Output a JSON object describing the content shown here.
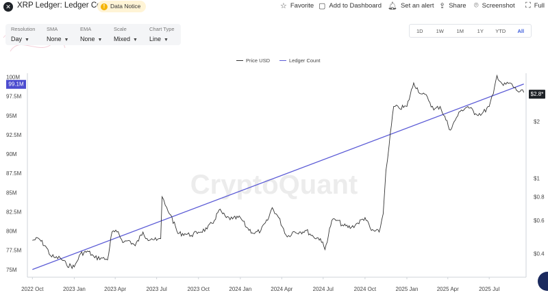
{
  "header": {
    "title": "XRP Ledger: Ledger Count",
    "notice_label": "Data Notice",
    "actions": [
      {
        "label": "Favorite",
        "icon": "star-icon"
      },
      {
        "label": "Add to Dashboard",
        "icon": "box-icon"
      },
      {
        "label": "Set an alert",
        "icon": "bell-icon"
      },
      {
        "label": "Share",
        "icon": "share-icon"
      },
      {
        "label": "Screenshot",
        "icon": "camera-icon"
      },
      {
        "label": "Full",
        "icon": "fullscreen-icon"
      }
    ]
  },
  "controls": {
    "resolution": {
      "label": "Resolution",
      "value": "Day"
    },
    "sma": {
      "label": "SMA",
      "value": "None"
    },
    "ema": {
      "label": "EMA",
      "value": "None"
    },
    "scale": {
      "label": "Scale",
      "value": "Mixed"
    },
    "chart_type": {
      "label": "Chart Type",
      "value": "Line"
    }
  },
  "ranges": [
    "1D",
    "1W",
    "1M",
    "1Y",
    "YTD",
    "All"
  ],
  "active_range": "All",
  "watermark": "CryptoQuant",
  "colors": {
    "price": "#333333",
    "ledger": "#5b5bd6",
    "accent": "#3b5bdb"
  },
  "chart_data": {
    "type": "line",
    "x_ticks": [
      "2022 Oct",
      "2023 Jan",
      "2023 Apr",
      "2023 Jul",
      "2023 Oct",
      "2024 Jan",
      "2024 Apr",
      "2024 Jul",
      "2024 Oct",
      "2025 Jan",
      "2025 Apr",
      "2025 Jul"
    ],
    "left_axis": {
      "ticks": [
        "75M",
        "77.5M",
        "80M",
        "82.5M",
        "85M",
        "87.5M",
        "90M",
        "92.5M",
        "95M",
        "97.5M",
        "100M"
      ],
      "range": [
        74,
        100.5
      ],
      "current_label": "99.1M"
    },
    "right_axis": {
      "scale": "log",
      "ticks": [
        "$0.4",
        "$0.6",
        "$0.8",
        "$1",
        "$2"
      ],
      "range": [
        0.3,
        3.6
      ],
      "current_label": "$2.8"
    },
    "series": [
      {
        "name": "Price USD",
        "axis": "right",
        "x": [
          "2022-10-01",
          "2022-10-15",
          "2022-11-01",
          "2022-11-10",
          "2022-11-20",
          "2022-12-01",
          "2022-12-15",
          "2023-01-01",
          "2023-01-15",
          "2023-02-01",
          "2023-02-15",
          "2023-03-01",
          "2023-03-15",
          "2023-03-25",
          "2023-04-05",
          "2023-04-20",
          "2023-05-01",
          "2023-05-15",
          "2023-06-01",
          "2023-06-10",
          "2023-06-20",
          "2023-07-01",
          "2023-07-10",
          "2023-07-13",
          "2023-07-20",
          "2023-08-01",
          "2023-08-17",
          "2023-09-01",
          "2023-09-15",
          "2023-10-01",
          "2023-10-20",
          "2023-11-05",
          "2023-11-15",
          "2023-12-01",
          "2023-12-15",
          "2024-01-01",
          "2024-01-15",
          "2024-02-01",
          "2024-02-15",
          "2024-03-01",
          "2024-03-11",
          "2024-03-25",
          "2024-04-13",
          "2024-04-25",
          "2024-05-10",
          "2024-05-25",
          "2024-06-10",
          "2024-06-25",
          "2024-07-05",
          "2024-07-20",
          "2024-08-01",
          "2024-08-15",
          "2024-09-01",
          "2024-09-15",
          "2024-10-01",
          "2024-10-15",
          "2024-11-01",
          "2024-11-10",
          "2024-11-16",
          "2024-11-23",
          "2024-12-03",
          "2024-12-15",
          "2025-01-01",
          "2025-01-16",
          "2025-02-01",
          "2025-02-15",
          "2025-03-01",
          "2025-03-15",
          "2025-04-07",
          "2025-04-20",
          "2025-05-01",
          "2025-05-15",
          "2025-06-01",
          "2025-06-15",
          "2025-07-01",
          "2025-07-10",
          "2025-07-18",
          "2025-08-01",
          "2025-08-15",
          "2025-09-01",
          "2025-09-15"
        ],
        "values": [
          0.47,
          0.48,
          0.43,
          0.39,
          0.38,
          0.38,
          0.35,
          0.34,
          0.4,
          0.41,
          0.38,
          0.38,
          0.37,
          0.52,
          0.52,
          0.46,
          0.47,
          0.44,
          0.52,
          0.48,
          0.48,
          0.47,
          0.48,
          0.8,
          0.72,
          0.64,
          0.51,
          0.51,
          0.5,
          0.52,
          0.54,
          0.6,
          0.68,
          0.62,
          0.61,
          0.62,
          0.55,
          0.51,
          0.53,
          0.6,
          0.7,
          0.62,
          0.49,
          0.52,
          0.52,
          0.53,
          0.49,
          0.48,
          0.42,
          0.6,
          0.6,
          0.56,
          0.55,
          0.58,
          0.62,
          0.53,
          0.52,
          0.65,
          1.1,
          1.5,
          2.4,
          2.35,
          2.4,
          3.2,
          2.8,
          2.7,
          2.3,
          2.4,
          1.8,
          2.1,
          2.3,
          2.4,
          2.2,
          2.2,
          2.4,
          2.8,
          3.5,
          3.1,
          3.2,
          2.9,
          2.85
        ]
      },
      {
        "name": "Ledger Count",
        "axis": "left",
        "x": [
          "2022-10-01",
          "2025-09-15"
        ],
        "values": [
          75.0,
          99.1
        ]
      }
    ]
  }
}
